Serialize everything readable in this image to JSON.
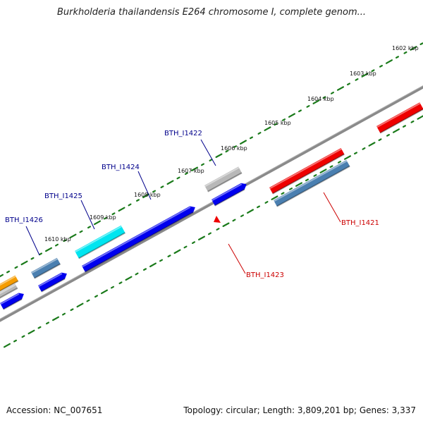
{
  "title": "Burkholderia thailandensis E264 chromosome I, complete genom...",
  "footer": {
    "accession": "Accession: NC_007651",
    "summary": "Topology: circular; Length: 3,809,201 bp; Genes: 3,337"
  },
  "colors": {
    "backbone": "#808080",
    "tick": "#1a7a1a",
    "forward_label": "#00008b",
    "reverse_label": "#cc0000",
    "blue": "#0000ee",
    "red": "#ee0000",
    "steel": "#4a7fb0",
    "cyan": "#00e5f0",
    "gray": "#b8b8b8",
    "orange": "#f59c00"
  },
  "scale_labels": [
    "1602 kbp",
    "1603 kbp",
    "1604 kbp",
    "1605 kbp",
    "1606 kbp",
    "1607 kbp",
    "1608 kbp",
    "1609 kbp",
    "1610 kbp"
  ],
  "gene_labels": [
    {
      "id": "lbl-i1422",
      "text": "BTH_I1422",
      "strand": "forward"
    },
    {
      "id": "lbl-i1424",
      "text": "BTH_I1424",
      "strand": "forward"
    },
    {
      "id": "lbl-i1425",
      "text": "BTH_I1425",
      "strand": "forward"
    },
    {
      "id": "lbl-i1426",
      "text": "BTH_I1426",
      "strand": "forward"
    },
    {
      "id": "lbl-i1421",
      "text": "BTH_I1421",
      "strand": "reverse"
    },
    {
      "id": "lbl-i1423",
      "text": "BTH_I1423",
      "strand": "reverse"
    }
  ]
}
